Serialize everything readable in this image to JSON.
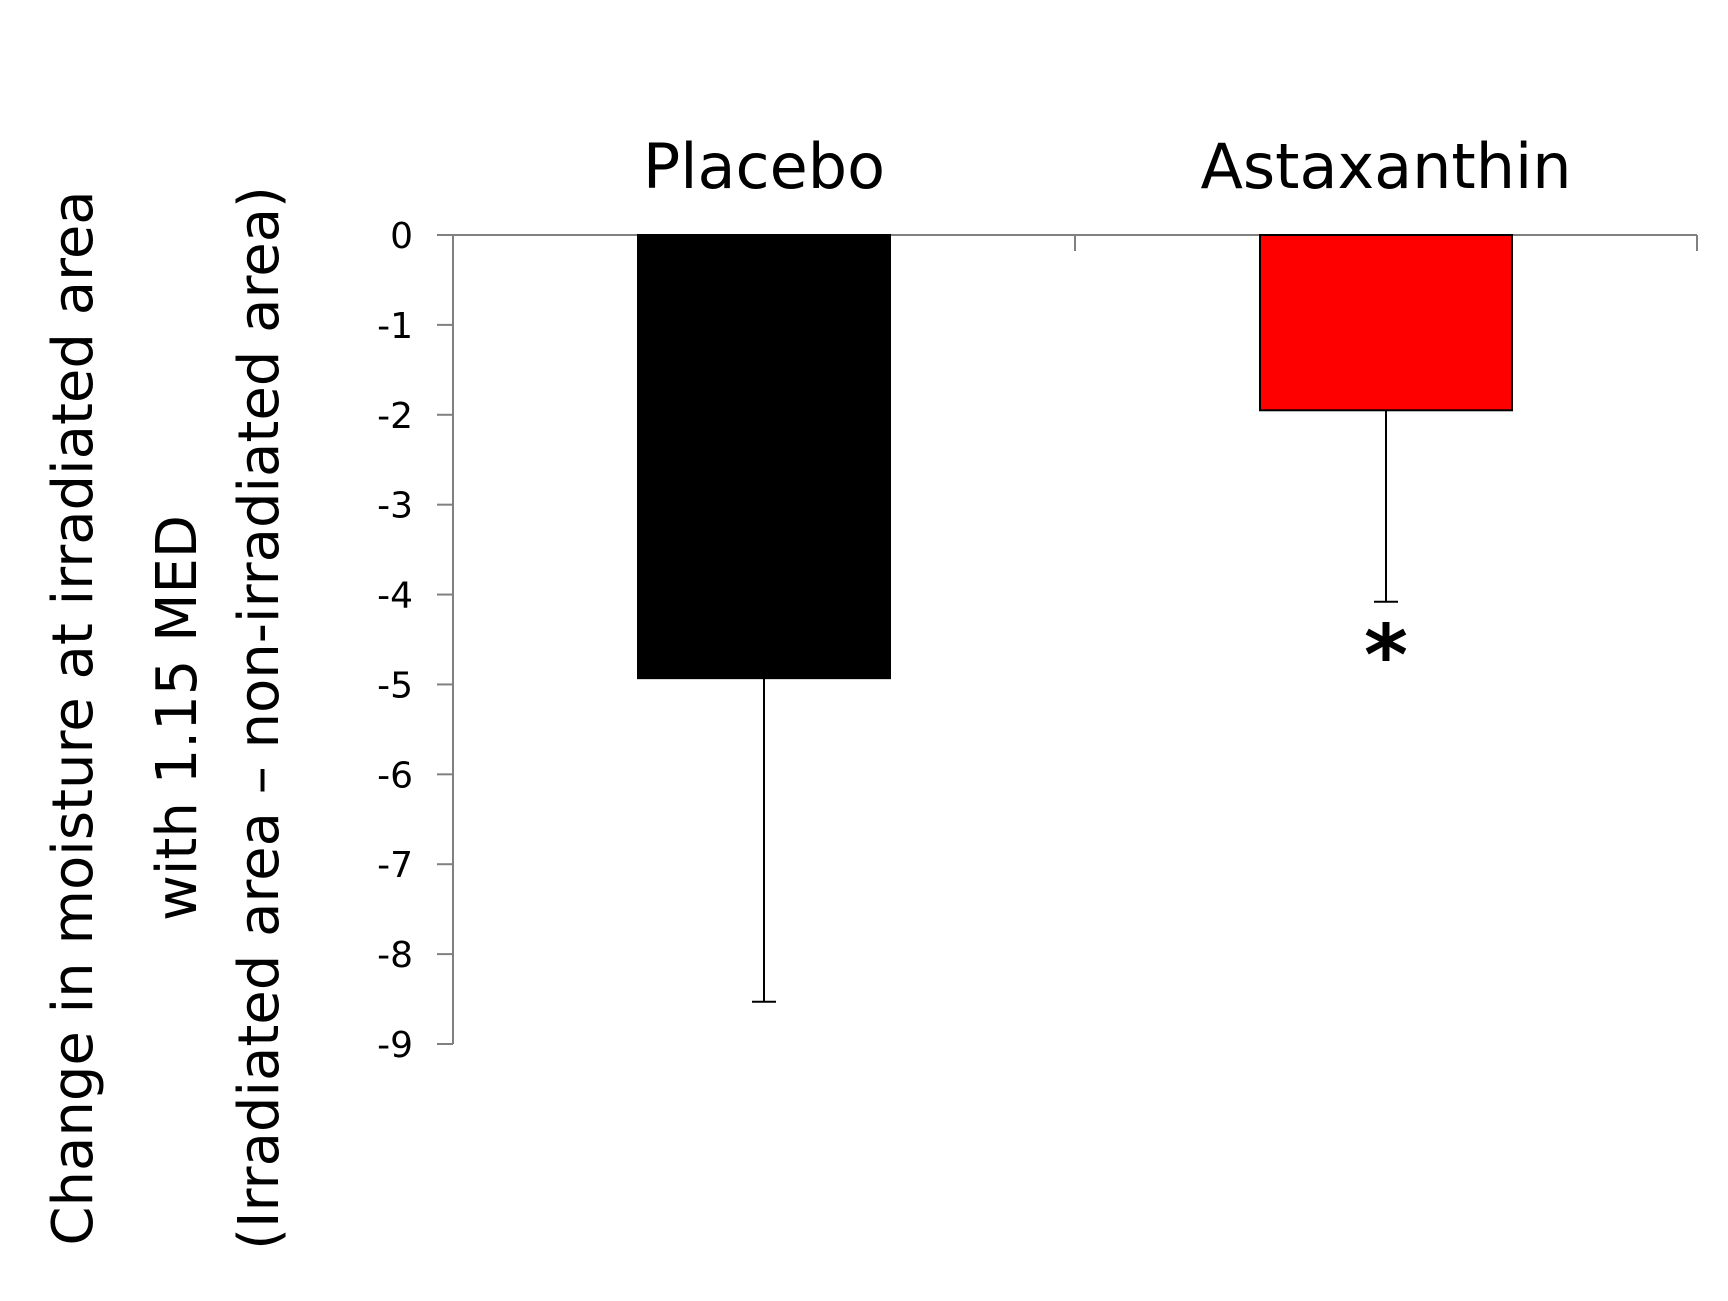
{
  "chart_data": {
    "type": "bar",
    "categories": [
      "Placebo",
      "Astaxanthin"
    ],
    "values": [
      -4.93,
      -1.95
    ],
    "error": [
      3.6,
      2.13
    ],
    "colors": [
      "#000000",
      "#ff0000"
    ],
    "annotations": [
      "",
      "*"
    ],
    "ylabel_lines": [
      "Change in moisture at irradiated area",
      "with 1.15 MED",
      "(Irradiated area – non-irradiated area)"
    ],
    "ylim": [
      -9,
      0
    ],
    "yticks": [
      "0",
      "-1",
      "-2",
      "-3",
      "-4",
      "-5",
      "-6",
      "-7",
      "-8",
      "-9"
    ],
    "category_axis_position": "top",
    "grid": false,
    "legend": "none"
  }
}
